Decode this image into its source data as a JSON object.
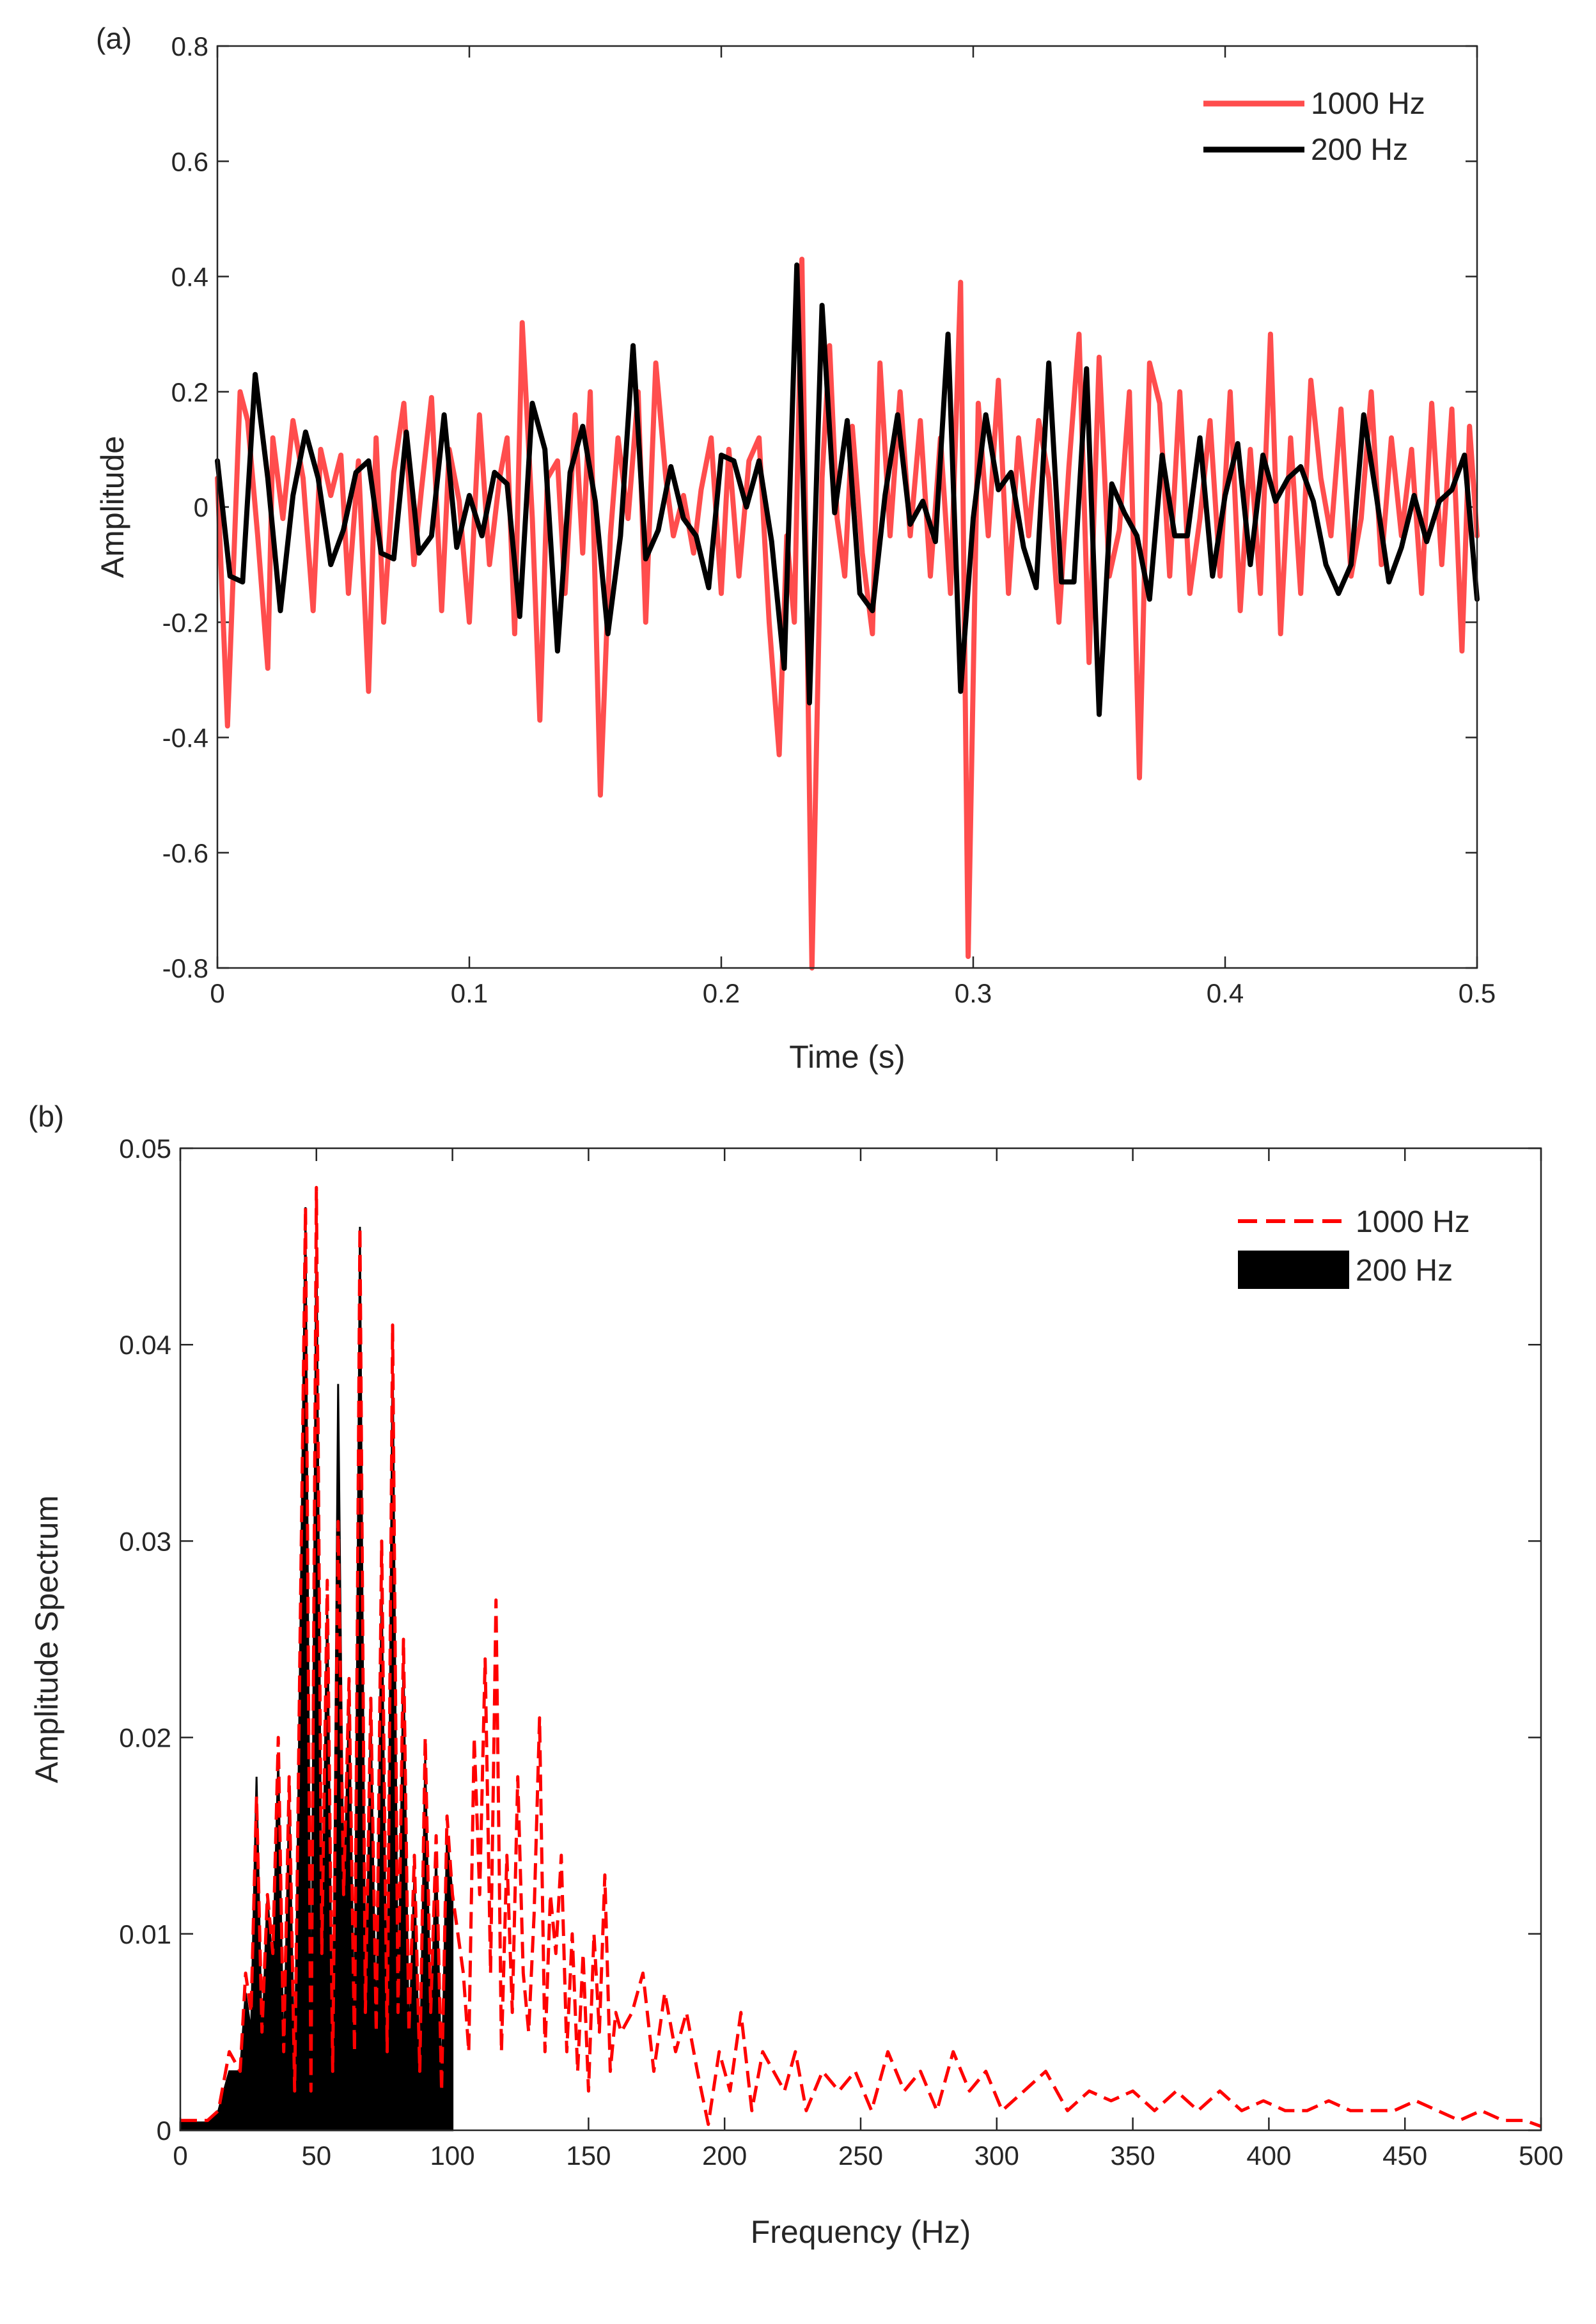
{
  "chart_data": [
    {
      "panel": "(a)",
      "type": "line",
      "title": "",
      "xlabel": "Time (s)",
      "ylabel": "Amplitude",
      "xlim": [
        0,
        0.5
      ],
      "ylim": [
        -0.8,
        0.8
      ],
      "xticks": [
        "0",
        "0.1",
        "0.2",
        "0.3",
        "0.4",
        "0.5"
      ],
      "yticks": [
        "-0.8",
        "-0.6",
        "-0.4",
        "-0.2",
        "0",
        "0.2",
        "0.4",
        "0.6",
        "0.8"
      ],
      "xtick_values": [
        0,
        0.1,
        0.2,
        0.3,
        0.4,
        0.5
      ],
      "ytick_values": [
        -0.8,
        -0.6,
        -0.4,
        -0.2,
        0,
        0.2,
        0.4,
        0.6,
        0.8
      ],
      "legend_position": "top-right",
      "series": [
        {
          "name": "1000 Hz",
          "color": "#ff4d4d",
          "style": "solid-thick",
          "x": [
            0,
            0.004,
            0.009,
            0.012,
            0.016,
            0.02,
            0.022,
            0.026,
            0.03,
            0.034,
            0.038,
            0.041,
            0.045,
            0.049,
            0.052,
            0.056,
            0.06,
            0.063,
            0.066,
            0.07,
            0.074,
            0.078,
            0.081,
            0.085,
            0.089,
            0.092,
            0.096,
            0.1,
            0.104,
            0.108,
            0.112,
            0.115,
            0.118,
            0.121,
            0.125,
            0.128,
            0.131,
            0.135,
            0.138,
            0.142,
            0.145,
            0.148,
            0.152,
            0.156,
            0.159,
            0.163,
            0.167,
            0.17,
            0.174,
            0.178,
            0.181,
            0.185,
            0.189,
            0.192,
            0.196,
            0.2,
            0.203,
            0.207,
            0.211,
            0.215,
            0.219,
            0.223,
            0.226,
            0.229,
            0.232,
            0.236,
            0.24,
            0.243,
            0.246,
            0.249,
            0.252,
            0.256,
            0.26,
            0.263,
            0.267,
            0.271,
            0.275,
            0.279,
            0.283,
            0.287,
            0.291,
            0.295,
            0.298,
            0.302,
            0.306,
            0.31,
            0.314,
            0.318,
            0.322,
            0.326,
            0.33,
            0.334,
            0.338,
            0.342,
            0.346,
            0.35,
            0.354,
            0.358,
            0.362,
            0.366,
            0.37,
            0.374,
            0.378,
            0.382,
            0.386,
            0.39,
            0.394,
            0.398,
            0.402,
            0.406,
            0.41,
            0.414,
            0.418,
            0.422,
            0.426,
            0.43,
            0.434,
            0.438,
            0.442,
            0.446,
            0.45,
            0.454,
            0.458,
            0.462,
            0.466,
            0.47,
            0.474,
            0.478,
            0.482,
            0.486,
            0.49,
            0.494,
            0.497,
            0.5
          ],
          "y": [
            0.05,
            -0.38,
            0.2,
            0.15,
            -0.05,
            -0.28,
            0.12,
            -0.02,
            0.15,
            0.05,
            -0.18,
            0.1,
            0.02,
            0.09,
            -0.15,
            0.08,
            -0.32,
            0.12,
            -0.2,
            0.06,
            0.18,
            -0.1,
            0.03,
            0.19,
            -0.18,
            0.1,
            0.01,
            -0.2,
            0.16,
            -0.1,
            0.05,
            0.12,
            -0.22,
            0.32,
            -0.02,
            -0.37,
            0.05,
            0.08,
            -0.15,
            0.16,
            -0.08,
            0.2,
            -0.5,
            -0.05,
            0.12,
            -0.02,
            0.2,
            -0.2,
            0.25,
            0.05,
            -0.05,
            0.02,
            -0.08,
            0.03,
            0.12,
            -0.15,
            0.1,
            -0.12,
            0.08,
            0.12,
            -0.2,
            -0.43,
            -0.05,
            -0.2,
            0.43,
            -0.8,
            0.05,
            0.28,
            -0.02,
            -0.12,
            0.14,
            -0.08,
            -0.22,
            0.25,
            -0.05,
            0.2,
            -0.05,
            0.15,
            -0.12,
            0.12,
            -0.15,
            0.39,
            -0.78,
            0.18,
            -0.05,
            0.22,
            -0.15,
            0.12,
            -0.05,
            0.15,
            0.05,
            -0.2,
            0.07,
            0.3,
            -0.27,
            0.26,
            -0.12,
            -0.04,
            0.2,
            -0.47,
            0.25,
            0.18,
            -0.12,
            0.2,
            -0.15,
            -0.02,
            0.15,
            -0.12,
            0.2,
            -0.18,
            0.1,
            -0.15,
            0.3,
            -0.22,
            0.12,
            -0.15,
            0.22,
            0.05,
            -0.05,
            0.17,
            -0.12,
            -0.02,
            0.2,
            -0.1,
            0.12,
            -0.05,
            0.1,
            -0.15,
            0.18,
            -0.1,
            0.17,
            -0.25,
            0.14,
            -0.05
          ]
        },
        {
          "name": "200 Hz",
          "color": "#000000",
          "style": "solid-thick",
          "x": [
            0,
            0.005,
            0.01,
            0.015,
            0.02,
            0.025,
            0.03,
            0.035,
            0.04,
            0.045,
            0.05,
            0.055,
            0.06,
            0.065,
            0.07,
            0.075,
            0.08,
            0.085,
            0.09,
            0.095,
            0.1,
            0.105,
            0.11,
            0.115,
            0.12,
            0.125,
            0.13,
            0.135,
            0.14,
            0.145,
            0.15,
            0.155,
            0.16,
            0.165,
            0.17,
            0.175,
            0.18,
            0.185,
            0.19,
            0.195,
            0.2,
            0.205,
            0.21,
            0.215,
            0.22,
            0.225,
            0.23,
            0.235,
            0.24,
            0.245,
            0.25,
            0.255,
            0.26,
            0.265,
            0.27,
            0.275,
            0.28,
            0.285,
            0.29,
            0.295,
            0.3,
            0.305,
            0.31,
            0.315,
            0.32,
            0.325,
            0.33,
            0.335,
            0.34,
            0.345,
            0.35,
            0.355,
            0.36,
            0.365,
            0.37,
            0.375,
            0.38,
            0.385,
            0.39,
            0.395,
            0.4,
            0.405,
            0.41,
            0.415,
            0.42,
            0.425,
            0.43,
            0.435,
            0.44,
            0.445,
            0.45,
            0.455,
            0.46,
            0.465,
            0.47,
            0.475,
            0.48,
            0.485,
            0.49,
            0.495,
            0.5
          ],
          "y": [
            0.08,
            -0.12,
            -0.13,
            0.23,
            0.05,
            -0.18,
            0.02,
            0.13,
            0.05,
            -0.1,
            -0.04,
            0.06,
            0.08,
            -0.08,
            -0.09,
            0.13,
            -0.08,
            -0.05,
            0.16,
            -0.07,
            0.02,
            -0.05,
            0.06,
            0.04,
            -0.19,
            0.18,
            0.1,
            -0.25,
            0.06,
            0.14,
            0.01,
            -0.22,
            -0.05,
            0.28,
            -0.09,
            -0.04,
            0.07,
            -0.02,
            -0.05,
            -0.14,
            0.09,
            0.08,
            0.0,
            0.08,
            -0.06,
            -0.28,
            0.42,
            -0.34,
            0.35,
            -0.01,
            0.15,
            -0.15,
            -0.18,
            0.02,
            0.16,
            -0.03,
            0.01,
            -0.06,
            0.3,
            -0.32,
            -0.02,
            0.16,
            0.03,
            0.06,
            -0.07,
            -0.14,
            0.25,
            -0.13,
            -0.13,
            0.24,
            -0.36,
            0.04,
            -0.01,
            -0.05,
            -0.16,
            0.09,
            -0.05,
            -0.05,
            0.12,
            -0.12,
            0.02,
            0.11,
            -0.1,
            0.09,
            0.01,
            0.05,
            0.07,
            0.01,
            -0.1,
            -0.15,
            -0.1,
            0.16,
            0.02,
            -0.13,
            -0.07,
            0.02,
            -0.06,
            0.01,
            0.03,
            0.09,
            -0.16
          ]
        }
      ]
    },
    {
      "panel": "(b)",
      "type": "line",
      "title": "",
      "xlabel": "Frequency (Hz)",
      "ylabel": "Amplitude Spectrum",
      "xlim": [
        0,
        500
      ],
      "ylim": [
        0,
        0.05
      ],
      "xticks": [
        "0",
        "50",
        "100",
        "150",
        "200",
        "250",
        "300",
        "350",
        "400",
        "450",
        "500"
      ],
      "yticks": [
        "0",
        "0.01",
        "0.02",
        "0.03",
        "0.04",
        "0.05"
      ],
      "xtick_values": [
        0,
        50,
        100,
        150,
        200,
        250,
        300,
        350,
        400,
        450,
        500
      ],
      "ytick_values": [
        0,
        0.01,
        0.02,
        0.03,
        0.04,
        0.05
      ],
      "legend_position": "top-right",
      "series": [
        {
          "name": "1000 Hz",
          "color": "#ff0000",
          "style": "dashed",
          "x": [
            0,
            10,
            14,
            18,
            22,
            24,
            26,
            28,
            30,
            32,
            34,
            36,
            38,
            40,
            42,
            44,
            46,
            48,
            50,
            52,
            54,
            56,
            58,
            60,
            62,
            64,
            66,
            68,
            70,
            72,
            74,
            76,
            78,
            80,
            82,
            84,
            86,
            88,
            90,
            92,
            94,
            96,
            98,
            100,
            104,
            106,
            108,
            110,
            112,
            114,
            116,
            118,
            120,
            122,
            124,
            126,
            128,
            130,
            132,
            134,
            136,
            138,
            140,
            142,
            144,
            146,
            148,
            150,
            152,
            154,
            156,
            158,
            160,
            162,
            166,
            170,
            174,
            178,
            182,
            186,
            190,
            194,
            198,
            202,
            206,
            210,
            214,
            218,
            222,
            226,
            230,
            236,
            242,
            248,
            254,
            260,
            266,
            272,
            278,
            284,
            290,
            296,
            302,
            310,
            318,
            326,
            334,
            342,
            350,
            358,
            366,
            374,
            382,
            390,
            398,
            406,
            414,
            422,
            430,
            438,
            446,
            454,
            462,
            470,
            478,
            486,
            494,
            500
          ],
          "y": [
            0.0005,
            0.0005,
            0.001,
            0.004,
            0.003,
            0.008,
            0.006,
            0.017,
            0.005,
            0.012,
            0.009,
            0.02,
            0.004,
            0.018,
            0.002,
            0.025,
            0.047,
            0.002,
            0.048,
            0.009,
            0.028,
            0.003,
            0.031,
            0.012,
            0.023,
            0.004,
            0.046,
            0.006,
            0.022,
            0.005,
            0.03,
            0.004,
            0.041,
            0.006,
            0.025,
            0.005,
            0.014,
            0.003,
            0.02,
            0.006,
            0.015,
            0.002,
            0.016,
            0.012,
            0.008,
            0.004,
            0.02,
            0.012,
            0.024,
            0.008,
            0.027,
            0.004,
            0.014,
            0.006,
            0.018,
            0.008,
            0.005,
            0.011,
            0.021,
            0.004,
            0.012,
            0.009,
            0.014,
            0.004,
            0.01,
            0.003,
            0.009,
            0.002,
            0.01,
            0.005,
            0.013,
            0.003,
            0.006,
            0.005,
            0.006,
            0.008,
            0.003,
            0.007,
            0.004,
            0.006,
            0.003,
            0.0003,
            0.004,
            0.002,
            0.006,
            0.001,
            0.004,
            0.003,
            0.002,
            0.004,
            0.001,
            0.003,
            0.002,
            0.003,
            0.001,
            0.004,
            0.002,
            0.003,
            0.001,
            0.004,
            0.002,
            0.003,
            0.001,
            0.002,
            0.003,
            0.001,
            0.002,
            0.0015,
            0.002,
            0.001,
            0.002,
            0.001,
            0.002,
            0.001,
            0.0015,
            0.001,
            0.001,
            0.0015,
            0.001,
            0.001,
            0.001,
            0.0015,
            0.001,
            0.0005,
            0.001,
            0.0005,
            0.0005,
            0.0002
          ]
        },
        {
          "name": "200 Hz",
          "color": "#000000",
          "style": "filled",
          "x": [
            0,
            10,
            14,
            18,
            22,
            24,
            26,
            28,
            30,
            32,
            34,
            36,
            38,
            40,
            42,
            44,
            46,
            48,
            50,
            52,
            54,
            56,
            58,
            60,
            62,
            64,
            66,
            68,
            70,
            72,
            74,
            76,
            78,
            80,
            82,
            84,
            86,
            88,
            90,
            92,
            94,
            96,
            98,
            100
          ],
          "y": [
            0.0004,
            0.0004,
            0.001,
            0.003,
            0.003,
            0.007,
            0.005,
            0.018,
            0.004,
            0.012,
            0.008,
            0.019,
            0.003,
            0.017,
            0.002,
            0.024,
            0.047,
            0.002,
            0.046,
            0.008,
            0.027,
            0.002,
            0.038,
            0.011,
            0.022,
            0.004,
            0.046,
            0.005,
            0.021,
            0.004,
            0.028,
            0.003,
            0.04,
            0.005,
            0.024,
            0.004,
            0.013,
            0.002,
            0.019,
            0.005,
            0.014,
            0.002,
            0.015,
            0.012
          ]
        }
      ]
    }
  ]
}
